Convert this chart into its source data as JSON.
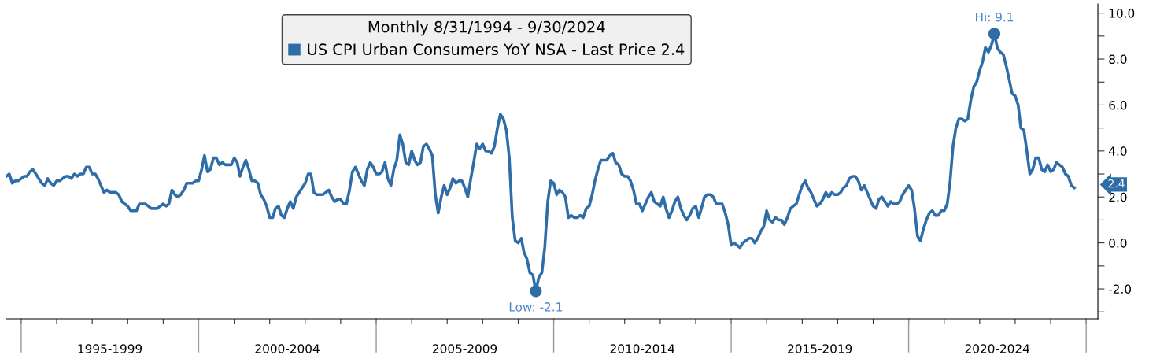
{
  "chart_data": {
    "type": "line",
    "legend_title": "Monthly 8/31/1994 - 9/30/2024",
    "x": [
      "1994-08",
      "1994-09",
      "1994-10",
      "1994-11",
      "1994-12",
      "1995-01",
      "1995-02",
      "1995-03",
      "1995-04",
      "1995-05",
      "1995-06",
      "1995-07",
      "1995-08",
      "1995-09",
      "1995-10",
      "1995-11",
      "1995-12",
      "1996-01",
      "1996-02",
      "1996-03",
      "1996-04",
      "1996-05",
      "1996-06",
      "1996-07",
      "1996-08",
      "1996-09",
      "1996-10",
      "1996-11",
      "1996-12",
      "1997-01",
      "1997-02",
      "1997-03",
      "1997-04",
      "1997-05",
      "1997-06",
      "1997-07",
      "1997-08",
      "1997-09",
      "1997-10",
      "1997-11",
      "1997-12",
      "1998-01",
      "1998-02",
      "1998-03",
      "1998-04",
      "1998-05",
      "1998-06",
      "1998-07",
      "1998-08",
      "1998-09",
      "1998-10",
      "1998-11",
      "1998-12",
      "1999-01",
      "1999-02",
      "1999-03",
      "1999-04",
      "1999-05",
      "1999-06",
      "1999-07",
      "1999-08",
      "1999-09",
      "1999-10",
      "1999-11",
      "1999-12",
      "2000-01",
      "2000-02",
      "2000-03",
      "2000-04",
      "2000-05",
      "2000-06",
      "2000-07",
      "2000-08",
      "2000-09",
      "2000-10",
      "2000-11",
      "2000-12",
      "2001-01",
      "2001-02",
      "2001-03",
      "2001-04",
      "2001-05",
      "2001-06",
      "2001-07",
      "2001-08",
      "2001-09",
      "2001-10",
      "2001-11",
      "2001-12",
      "2002-01",
      "2002-02",
      "2002-03",
      "2002-04",
      "2002-05",
      "2002-06",
      "2002-07",
      "2002-08",
      "2002-09",
      "2002-10",
      "2002-11",
      "2002-12",
      "2003-01",
      "2003-02",
      "2003-03",
      "2003-04",
      "2003-05",
      "2003-06",
      "2003-07",
      "2003-08",
      "2003-09",
      "2003-10",
      "2003-11",
      "2003-12",
      "2004-01",
      "2004-02",
      "2004-03",
      "2004-04",
      "2004-05",
      "2004-06",
      "2004-07",
      "2004-08",
      "2004-09",
      "2004-10",
      "2004-11",
      "2004-12",
      "2005-01",
      "2005-02",
      "2005-03",
      "2005-04",
      "2005-05",
      "2005-06",
      "2005-07",
      "2005-08",
      "2005-09",
      "2005-10",
      "2005-11",
      "2005-12",
      "2006-01",
      "2006-02",
      "2006-03",
      "2006-04",
      "2006-05",
      "2006-06",
      "2006-07",
      "2006-08",
      "2006-09",
      "2006-10",
      "2006-11",
      "2006-12",
      "2007-01",
      "2007-02",
      "2007-03",
      "2007-04",
      "2007-05",
      "2007-06",
      "2007-07",
      "2007-08",
      "2007-09",
      "2007-10",
      "2007-11",
      "2007-12",
      "2008-01",
      "2008-02",
      "2008-03",
      "2008-04",
      "2008-05",
      "2008-06",
      "2008-07",
      "2008-08",
      "2008-09",
      "2008-10",
      "2008-11",
      "2008-12",
      "2009-01",
      "2009-02",
      "2009-03",
      "2009-04",
      "2009-05",
      "2009-06",
      "2009-07",
      "2009-08",
      "2009-09",
      "2009-10",
      "2009-11",
      "2009-12",
      "2010-01",
      "2010-02",
      "2010-03",
      "2010-04",
      "2010-05",
      "2010-06",
      "2010-07",
      "2010-08",
      "2010-09",
      "2010-10",
      "2010-11",
      "2010-12",
      "2011-01",
      "2011-02",
      "2011-03",
      "2011-04",
      "2011-05",
      "2011-06",
      "2011-07",
      "2011-08",
      "2011-09",
      "2011-10",
      "2011-11",
      "2011-12",
      "2012-01",
      "2012-02",
      "2012-03",
      "2012-04",
      "2012-05",
      "2012-06",
      "2012-07",
      "2012-08",
      "2012-09",
      "2012-10",
      "2012-11",
      "2012-12",
      "2013-01",
      "2013-02",
      "2013-03",
      "2013-04",
      "2013-05",
      "2013-06",
      "2013-07",
      "2013-08",
      "2013-09",
      "2013-10",
      "2013-11",
      "2013-12",
      "2014-01",
      "2014-02",
      "2014-03",
      "2014-04",
      "2014-05",
      "2014-06",
      "2014-07",
      "2014-08",
      "2014-09",
      "2014-10",
      "2014-11",
      "2014-12",
      "2015-01",
      "2015-02",
      "2015-03",
      "2015-04",
      "2015-05",
      "2015-06",
      "2015-07",
      "2015-08",
      "2015-09",
      "2015-10",
      "2015-11",
      "2015-12",
      "2016-01",
      "2016-02",
      "2016-03",
      "2016-04",
      "2016-05",
      "2016-06",
      "2016-07",
      "2016-08",
      "2016-09",
      "2016-10",
      "2016-11",
      "2016-12",
      "2017-01",
      "2017-02",
      "2017-03",
      "2017-04",
      "2017-05",
      "2017-06",
      "2017-07",
      "2017-08",
      "2017-09",
      "2017-10",
      "2017-11",
      "2017-12",
      "2018-01",
      "2018-02",
      "2018-03",
      "2018-04",
      "2018-05",
      "2018-06",
      "2018-07",
      "2018-08",
      "2018-09",
      "2018-10",
      "2018-11",
      "2018-12",
      "2019-01",
      "2019-02",
      "2019-03",
      "2019-04",
      "2019-05",
      "2019-06",
      "2019-07",
      "2019-08",
      "2019-09",
      "2019-10",
      "2019-11",
      "2019-12",
      "2020-01",
      "2020-02",
      "2020-03",
      "2020-04",
      "2020-05",
      "2020-06",
      "2020-07",
      "2020-08",
      "2020-09",
      "2020-10",
      "2020-11",
      "2020-12",
      "2021-01",
      "2021-02",
      "2021-03",
      "2021-04",
      "2021-05",
      "2021-06",
      "2021-07",
      "2021-08",
      "2021-09",
      "2021-10",
      "2021-11",
      "2021-12",
      "2022-01",
      "2022-02",
      "2022-03",
      "2022-04",
      "2022-05",
      "2022-06",
      "2022-07",
      "2022-08",
      "2022-09",
      "2022-10",
      "2022-11",
      "2022-12",
      "2023-01",
      "2023-02",
      "2023-03",
      "2023-04",
      "2023-05",
      "2023-06",
      "2023-07",
      "2023-08",
      "2023-09",
      "2023-10",
      "2023-11",
      "2023-12",
      "2024-01",
      "2024-02",
      "2024-03",
      "2024-04",
      "2024-05",
      "2024-06",
      "2024-07",
      "2024-08",
      "2024-09"
    ],
    "series": [
      {
        "name": "US CPI Urban Consumers YoY NSA - Last Price 2.4",
        "color": "#2e6da8",
        "values": [
          2.9,
          3.0,
          2.6,
          2.7,
          2.7,
          2.8,
          2.9,
          2.9,
          3.1,
          3.2,
          3.0,
          2.8,
          2.6,
          2.5,
          2.8,
          2.6,
          2.5,
          2.7,
          2.7,
          2.8,
          2.9,
          2.9,
          2.8,
          3.0,
          2.9,
          3.0,
          3.0,
          3.3,
          3.3,
          3.0,
          3.0,
          2.8,
          2.5,
          2.2,
          2.3,
          2.2,
          2.2,
          2.2,
          2.1,
          1.8,
          1.7,
          1.6,
          1.4,
          1.4,
          1.4,
          1.7,
          1.7,
          1.7,
          1.6,
          1.5,
          1.5,
          1.5,
          1.6,
          1.7,
          1.6,
          1.7,
          2.3,
          2.1,
          2.0,
          2.1,
          2.3,
          2.6,
          2.6,
          2.6,
          2.7,
          2.7,
          3.2,
          3.8,
          3.1,
          3.2,
          3.7,
          3.7,
          3.4,
          3.5,
          3.4,
          3.4,
          3.4,
          3.7,
          3.5,
          2.9,
          3.3,
          3.6,
          3.2,
          2.7,
          2.7,
          2.6,
          2.1,
          1.9,
          1.6,
          1.1,
          1.1,
          1.5,
          1.6,
          1.2,
          1.1,
          1.5,
          1.8,
          1.5,
          2.0,
          2.2,
          2.4,
          2.6,
          3.0,
          3.0,
          2.2,
          2.1,
          2.1,
          2.1,
          2.2,
          2.3,
          2.0,
          1.8,
          1.9,
          1.9,
          1.7,
          1.7,
          2.3,
          3.1,
          3.3,
          3.0,
          2.7,
          2.5,
          3.2,
          3.5,
          3.3,
          3.0,
          3.0,
          3.1,
          3.5,
          2.8,
          2.5,
          3.2,
          3.6,
          4.7,
          4.3,
          3.5,
          3.4,
          4.0,
          3.6,
          3.4,
          3.5,
          4.2,
          4.3,
          4.1,
          3.8,
          2.1,
          1.3,
          2.0,
          2.5,
          2.1,
          2.4,
          2.8,
          2.6,
          2.7,
          2.7,
          2.4,
          2.0,
          2.8,
          3.5,
          4.3,
          4.1,
          4.3,
          4.0,
          4.0,
          3.9,
          4.2,
          5.0,
          5.6,
          5.4,
          4.9,
          3.7,
          1.1,
          0.1,
          0.0,
          0.2,
          -0.4,
          -0.7,
          -1.3,
          -1.4,
          -2.1,
          -1.5,
          -1.3,
          -0.2,
          1.8,
          2.7,
          2.6,
          2.1,
          2.3,
          2.2,
          2.0,
          1.1,
          1.2,
          1.1,
          1.1,
          1.2,
          1.1,
          1.5,
          1.6,
          2.1,
          2.7,
          3.2,
          3.6,
          3.6,
          3.6,
          3.8,
          3.9,
          3.5,
          3.4,
          3.0,
          2.9,
          2.9,
          2.7,
          2.3,
          1.7,
          1.7,
          1.4,
          1.7,
          2.0,
          2.2,
          1.8,
          1.7,
          1.6,
          2.0,
          1.5,
          1.1,
          1.4,
          1.8,
          2.0,
          1.5,
          1.2,
          1.0,
          1.2,
          1.5,
          1.6,
          1.1,
          1.5,
          2.0,
          2.1,
          2.1,
          2.0,
          1.7,
          1.7,
          1.7,
          1.3,
          0.8,
          -0.1,
          0.0,
          -0.1,
          -0.2,
          0.0,
          0.1,
          0.2,
          0.2,
          0.0,
          0.2,
          0.5,
          0.7,
          1.4,
          1.0,
          0.9,
          1.1,
          1.0,
          1.0,
          0.8,
          1.1,
          1.5,
          1.6,
          1.7,
          2.1,
          2.5,
          2.7,
          2.4,
          2.2,
          1.9,
          1.6,
          1.7,
          1.9,
          2.2,
          2.0,
          2.2,
          2.1,
          2.1,
          2.2,
          2.4,
          2.5,
          2.8,
          2.9,
          2.9,
          2.7,
          2.3,
          2.5,
          2.2,
          1.9,
          1.6,
          1.5,
          1.9,
          2.0,
          1.8,
          1.6,
          1.8,
          1.7,
          1.7,
          1.8,
          2.1,
          2.3,
          2.5,
          2.3,
          1.5,
          0.3,
          0.1,
          0.6,
          1.0,
          1.3,
          1.4,
          1.2,
          1.2,
          1.4,
          1.4,
          1.7,
          2.6,
          4.2,
          5.0,
          5.4,
          5.4,
          5.3,
          5.4,
          6.2,
          6.8,
          7.0,
          7.5,
          7.9,
          8.5,
          8.3,
          8.6,
          9.1,
          8.5,
          8.3,
          8.2,
          7.7,
          7.1,
          6.5,
          6.4,
          6.0,
          5.0,
          4.9,
          4.0,
          3.0,
          3.2,
          3.7,
          3.7,
          3.2,
          3.1,
          3.4,
          3.1,
          3.2,
          3.5,
          3.4,
          3.3,
          3.0,
          2.9,
          2.5,
          2.4
        ]
      }
    ],
    "xlim": [
      "1994-08",
      "2025-05"
    ],
    "xticks": [
      {
        "value": "1995-01",
        "label": null
      },
      {
        "value": "1996-01",
        "label": null
      },
      {
        "value": "1997-01",
        "label": null
      },
      {
        "value": "1998-01",
        "label": null
      },
      {
        "value": "1999-01",
        "label": null
      },
      {
        "value": "2000-01",
        "label": null
      },
      {
        "value": "2001-01",
        "label": null
      },
      {
        "value": "2002-01",
        "label": null
      },
      {
        "value": "2003-01",
        "label": null
      },
      {
        "value": "2004-01",
        "label": null
      },
      {
        "value": "2005-01",
        "label": null
      },
      {
        "value": "2006-01",
        "label": null
      },
      {
        "value": "2007-01",
        "label": null
      },
      {
        "value": "2008-01",
        "label": null
      },
      {
        "value": "2009-01",
        "label": null
      },
      {
        "value": "2010-01",
        "label": null
      },
      {
        "value": "2011-01",
        "label": null
      },
      {
        "value": "2012-01",
        "label": null
      },
      {
        "value": "2013-01",
        "label": null
      },
      {
        "value": "2014-01",
        "label": null
      },
      {
        "value": "2015-01",
        "label": null
      },
      {
        "value": "2016-01",
        "label": null
      },
      {
        "value": "2017-01",
        "label": null
      },
      {
        "value": "2018-01",
        "label": null
      },
      {
        "value": "2019-01",
        "label": null
      },
      {
        "value": "2020-01",
        "label": null
      },
      {
        "value": "2021-01",
        "label": null
      },
      {
        "value": "2022-01",
        "label": null
      },
      {
        "value": "2023-01",
        "label": null
      },
      {
        "value": "2024-01",
        "label": null
      },
      {
        "value": "2025-01",
        "label": null
      },
      {
        "value": "1997-07",
        "label": "1995-1999"
      },
      {
        "value": "2002-07",
        "label": "2000-2004"
      },
      {
        "value": "2007-07",
        "label": "2005-2009"
      },
      {
        "value": "2012-07",
        "label": "2010-2014"
      },
      {
        "value": "2017-07",
        "label": "2015-2019"
      },
      {
        "value": "2022-07",
        "label": "2020-2024"
      }
    ],
    "ylim": [
      -3.3,
      10.4
    ],
    "yticks": [
      {
        "value": -3,
        "label": null
      },
      {
        "value": -2,
        "label": "-2.0"
      },
      {
        "value": -1,
        "label": null
      },
      {
        "value": 0,
        "label": "0.0"
      },
      {
        "value": 1,
        "label": null
      },
      {
        "value": 2,
        "label": "2.0"
      },
      {
        "value": 3,
        "label": null
      },
      {
        "value": 4,
        "label": "4.0"
      },
      {
        "value": 5,
        "label": null
      },
      {
        "value": 6,
        "label": "6.0"
      },
      {
        "value": 7,
        "label": null
      },
      {
        "value": 8,
        "label": "8.0"
      },
      {
        "value": 9,
        "label": null
      },
      {
        "value": 10,
        "label": "10.0"
      }
    ],
    "annotations": [
      {
        "text": "Hi: 9.1",
        "x": "2022-06",
        "y": 9.1
      },
      {
        "text": "Low: -2.1",
        "x": "2009-07",
        "y": -2.1
      },
      "2.4"
    ],
    "legend": "top",
    "grid": false,
    "marker": "none",
    "line_style": "solid"
  }
}
